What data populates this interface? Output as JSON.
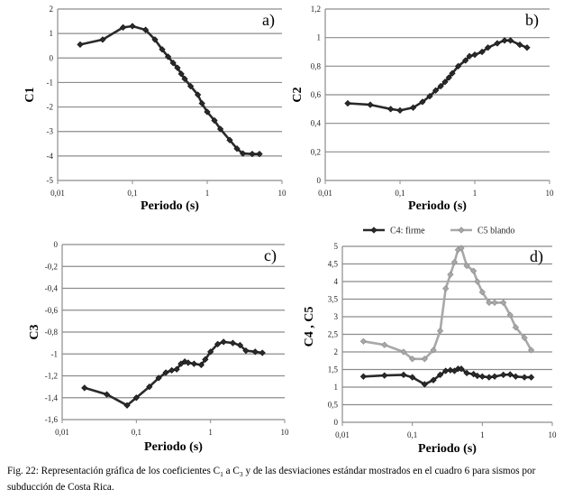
{
  "chart_data": [
    {
      "type": "line",
      "panel": "a)",
      "xlabel": "Periodo (s)",
      "ylabel": "C1",
      "xscale": "log",
      "xlim": [
        0.01,
        10
      ],
      "ylim": [
        -5,
        2
      ],
      "xticks": [
        "0,01",
        "0,1",
        "1",
        "10"
      ],
      "yticks": [
        "2",
        "1",
        "0",
        "-1",
        "-2",
        "-3",
        "-4",
        "-5"
      ],
      "grid": "horizontal",
      "series": [
        {
          "color": "#2a2a2a",
          "x": [
            0.02,
            0.04,
            0.075,
            0.1,
            0.15,
            0.2,
            0.25,
            0.3,
            0.35,
            0.4,
            0.45,
            0.5,
            0.6,
            0.75,
            0.85,
            1.0,
            1.25,
            1.5,
            2.0,
            2.5,
            3.0,
            4.0,
            5.0
          ],
          "y": [
            0.55,
            0.75,
            1.25,
            1.3,
            1.15,
            0.75,
            0.35,
            0.05,
            -0.2,
            -0.4,
            -0.65,
            -0.85,
            -1.15,
            -1.5,
            -1.85,
            -2.2,
            -2.55,
            -2.9,
            -3.35,
            -3.7,
            -3.9,
            -3.92,
            -3.92
          ]
        }
      ]
    },
    {
      "type": "line",
      "panel": "b)",
      "xlabel": "Periodo (s)",
      "ylabel": "C2",
      "xscale": "log",
      "xlim": [
        0.01,
        10
      ],
      "ylim": [
        0,
        1.2
      ],
      "xticks": [
        "0,01",
        "0,1",
        "1",
        "10"
      ],
      "yticks": [
        "1,2",
        "1",
        "0,8",
        "0,6",
        "0,4",
        "0,2",
        "0"
      ],
      "grid": "horizontal",
      "series": [
        {
          "color": "#2a2a2a",
          "x": [
            0.02,
            0.04,
            0.075,
            0.1,
            0.15,
            0.2,
            0.25,
            0.3,
            0.35,
            0.4,
            0.45,
            0.5,
            0.6,
            0.75,
            0.85,
            1.0,
            1.25,
            1.5,
            2.0,
            2.5,
            3.0,
            4.0,
            5.0
          ],
          "y": [
            0.54,
            0.53,
            0.5,
            0.49,
            0.51,
            0.55,
            0.59,
            0.63,
            0.66,
            0.69,
            0.72,
            0.75,
            0.8,
            0.84,
            0.87,
            0.88,
            0.9,
            0.93,
            0.96,
            0.98,
            0.98,
            0.95,
            0.93
          ]
        }
      ]
    },
    {
      "type": "line",
      "panel": "c)",
      "xlabel": "Periodo (s)",
      "ylabel": "C3",
      "xscale": "log",
      "xlim": [
        0.01,
        10
      ],
      "ylim": [
        -1.6,
        0
      ],
      "xticks": [
        "0,01",
        "0,1",
        "1",
        "10"
      ],
      "yticks": [
        "0",
        "-0,2",
        "-0,4",
        "-0,6",
        "-0,8",
        "-1",
        "-1,2",
        "-1,4",
        "-1,6"
      ],
      "grid": "horizontal",
      "series": [
        {
          "color": "#2a2a2a",
          "x": [
            0.02,
            0.04,
            0.075,
            0.1,
            0.15,
            0.2,
            0.25,
            0.3,
            0.35,
            0.4,
            0.45,
            0.5,
            0.6,
            0.75,
            0.85,
            1.0,
            1.25,
            1.5,
            2.0,
            2.5,
            3.0,
            4.0,
            5.0
          ],
          "y": [
            -1.31,
            -1.37,
            -1.47,
            -1.4,
            -1.3,
            -1.22,
            -1.17,
            -1.15,
            -1.14,
            -1.09,
            -1.07,
            -1.08,
            -1.09,
            -1.1,
            -1.05,
            -0.98,
            -0.91,
            -0.89,
            -0.9,
            -0.92,
            -0.97,
            -0.98,
            -0.99
          ]
        }
      ]
    },
    {
      "type": "line",
      "panel": "d)",
      "xlabel": "Periodo (s)",
      "ylabel": "C4 , C5",
      "xscale": "log",
      "xlim": [
        0.01,
        10
      ],
      "ylim": [
        0,
        5
      ],
      "xticks": [
        "0,01",
        "0,1",
        "1",
        "10"
      ],
      "yticks": [
        "5",
        "4,5",
        "4",
        "3,5",
        "3",
        "2,5",
        "2",
        "1,5",
        "1",
        "0,5",
        "0"
      ],
      "grid": "horizontal",
      "legend": "top",
      "series": [
        {
          "name": "C4: firme",
          "color": "#2a2a2a",
          "x": [
            0.02,
            0.04,
            0.075,
            0.1,
            0.15,
            0.2,
            0.25,
            0.3,
            0.35,
            0.4,
            0.45,
            0.5,
            0.6,
            0.75,
            0.85,
            1.0,
            1.25,
            1.5,
            2.0,
            2.5,
            3.0,
            4.0,
            5.0
          ],
          "y": [
            1.3,
            1.33,
            1.35,
            1.28,
            1.08,
            1.2,
            1.35,
            1.46,
            1.48,
            1.46,
            1.52,
            1.52,
            1.4,
            1.37,
            1.32,
            1.3,
            1.28,
            1.3,
            1.35,
            1.36,
            1.3,
            1.28,
            1.28
          ]
        },
        {
          "name": "C5 blando",
          "color": "#a8a8a8",
          "x": [
            0.02,
            0.04,
            0.075,
            0.1,
            0.15,
            0.2,
            0.25,
            0.3,
            0.35,
            0.4,
            0.45,
            0.5,
            0.6,
            0.75,
            0.85,
            1.0,
            1.25,
            1.5,
            2.0,
            2.5,
            3.0,
            4.0,
            5.0
          ],
          "y": [
            2.3,
            2.2,
            2.0,
            1.8,
            1.8,
            2.05,
            2.6,
            3.8,
            4.2,
            4.55,
            4.9,
            4.95,
            4.45,
            4.3,
            4.0,
            3.7,
            3.4,
            3.4,
            3.4,
            3.05,
            2.7,
            2.4,
            2.05
          ]
        }
      ]
    }
  ],
  "caption": {
    "prefix": "Fig. 22: Representación gráfica de los coeficientes C",
    "sub1": "1",
    "mid": " a C",
    "sub2": "3",
    "suffix": " y de las desviaciones estándar mostrados en el cuadro 6 para sismos por subducción de Costa Rica."
  }
}
